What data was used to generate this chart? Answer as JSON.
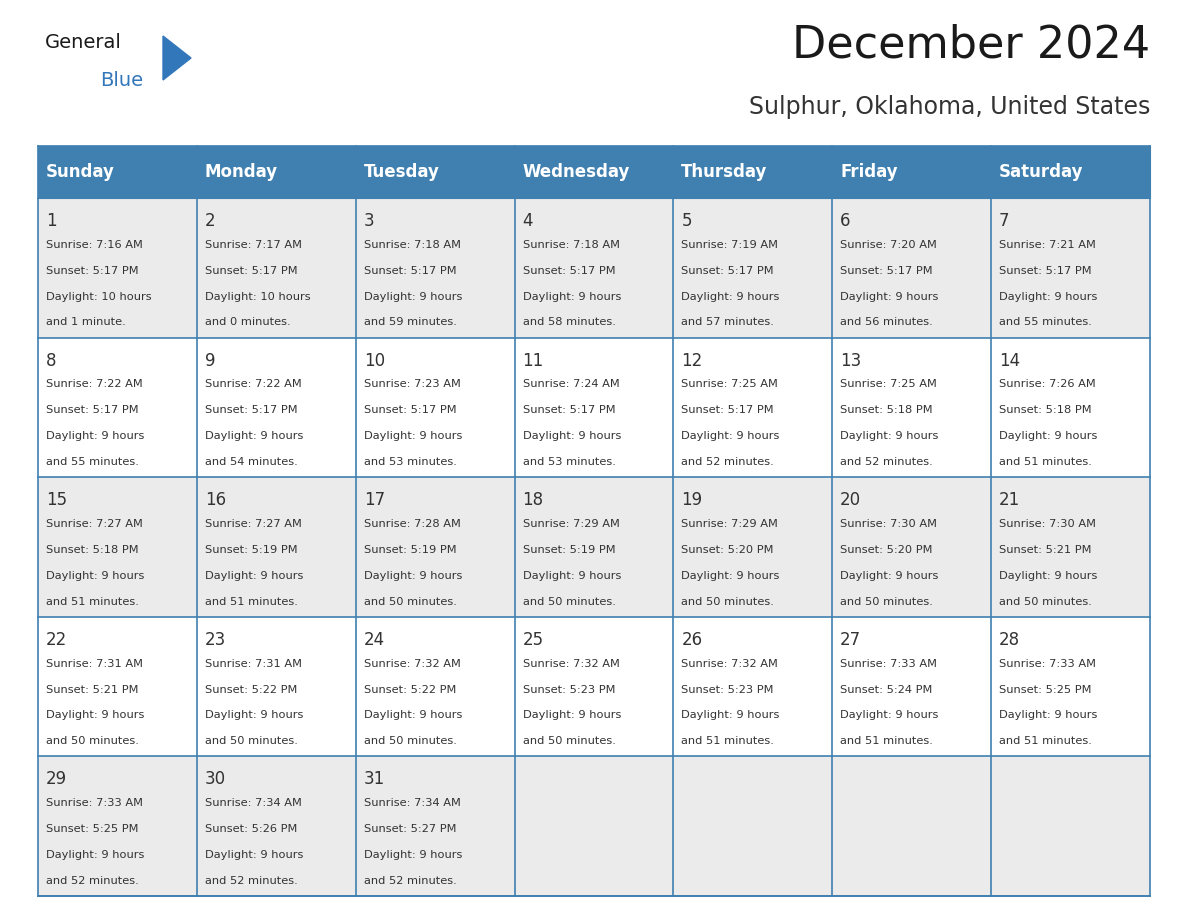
{
  "title": "December 2024",
  "subtitle": "Sulphur, Oklahoma, United States",
  "days_of_week": [
    "Sunday",
    "Monday",
    "Tuesday",
    "Wednesday",
    "Thursday",
    "Friday",
    "Saturday"
  ],
  "header_bg_color": "#4080B0",
  "header_text_color": "#FFFFFF",
  "cell_bg_color_light": "#EBEBEB",
  "cell_bg_color_dark": "#FFFFFF",
  "border_color": "#4080B0",
  "day_num_color": "#333333",
  "cell_text_color": "#333333",
  "title_color": "#1a1a1a",
  "subtitle_color": "#333333",
  "logo_general_color": "#1a1a1a",
  "logo_blue_color": "#3377BB",
  "weeks": [
    [
      {
        "day": 1,
        "sunrise": "7:16 AM",
        "sunset": "5:17 PM",
        "daylight_line1": "Daylight: 10 hours",
        "daylight_line2": "and 1 minute."
      },
      {
        "day": 2,
        "sunrise": "7:17 AM",
        "sunset": "5:17 PM",
        "daylight_line1": "Daylight: 10 hours",
        "daylight_line2": "and 0 minutes."
      },
      {
        "day": 3,
        "sunrise": "7:18 AM",
        "sunset": "5:17 PM",
        "daylight_line1": "Daylight: 9 hours",
        "daylight_line2": "and 59 minutes."
      },
      {
        "day": 4,
        "sunrise": "7:18 AM",
        "sunset": "5:17 PM",
        "daylight_line1": "Daylight: 9 hours",
        "daylight_line2": "and 58 minutes."
      },
      {
        "day": 5,
        "sunrise": "7:19 AM",
        "sunset": "5:17 PM",
        "daylight_line1": "Daylight: 9 hours",
        "daylight_line2": "and 57 minutes."
      },
      {
        "day": 6,
        "sunrise": "7:20 AM",
        "sunset": "5:17 PM",
        "daylight_line1": "Daylight: 9 hours",
        "daylight_line2": "and 56 minutes."
      },
      {
        "day": 7,
        "sunrise": "7:21 AM",
        "sunset": "5:17 PM",
        "daylight_line1": "Daylight: 9 hours",
        "daylight_line2": "and 55 minutes."
      }
    ],
    [
      {
        "day": 8,
        "sunrise": "7:22 AM",
        "sunset": "5:17 PM",
        "daylight_line1": "Daylight: 9 hours",
        "daylight_line2": "and 55 minutes."
      },
      {
        "day": 9,
        "sunrise": "7:22 AM",
        "sunset": "5:17 PM",
        "daylight_line1": "Daylight: 9 hours",
        "daylight_line2": "and 54 minutes."
      },
      {
        "day": 10,
        "sunrise": "7:23 AM",
        "sunset": "5:17 PM",
        "daylight_line1": "Daylight: 9 hours",
        "daylight_line2": "and 53 minutes."
      },
      {
        "day": 11,
        "sunrise": "7:24 AM",
        "sunset": "5:17 PM",
        "daylight_line1": "Daylight: 9 hours",
        "daylight_line2": "and 53 minutes."
      },
      {
        "day": 12,
        "sunrise": "7:25 AM",
        "sunset": "5:17 PM",
        "daylight_line1": "Daylight: 9 hours",
        "daylight_line2": "and 52 minutes."
      },
      {
        "day": 13,
        "sunrise": "7:25 AM",
        "sunset": "5:18 PM",
        "daylight_line1": "Daylight: 9 hours",
        "daylight_line2": "and 52 minutes."
      },
      {
        "day": 14,
        "sunrise": "7:26 AM",
        "sunset": "5:18 PM",
        "daylight_line1": "Daylight: 9 hours",
        "daylight_line2": "and 51 minutes."
      }
    ],
    [
      {
        "day": 15,
        "sunrise": "7:27 AM",
        "sunset": "5:18 PM",
        "daylight_line1": "Daylight: 9 hours",
        "daylight_line2": "and 51 minutes."
      },
      {
        "day": 16,
        "sunrise": "7:27 AM",
        "sunset": "5:19 PM",
        "daylight_line1": "Daylight: 9 hours",
        "daylight_line2": "and 51 minutes."
      },
      {
        "day": 17,
        "sunrise": "7:28 AM",
        "sunset": "5:19 PM",
        "daylight_line1": "Daylight: 9 hours",
        "daylight_line2": "and 50 minutes."
      },
      {
        "day": 18,
        "sunrise": "7:29 AM",
        "sunset": "5:19 PM",
        "daylight_line1": "Daylight: 9 hours",
        "daylight_line2": "and 50 minutes."
      },
      {
        "day": 19,
        "sunrise": "7:29 AM",
        "sunset": "5:20 PM",
        "daylight_line1": "Daylight: 9 hours",
        "daylight_line2": "and 50 minutes."
      },
      {
        "day": 20,
        "sunrise": "7:30 AM",
        "sunset": "5:20 PM",
        "daylight_line1": "Daylight: 9 hours",
        "daylight_line2": "and 50 minutes."
      },
      {
        "day": 21,
        "sunrise": "7:30 AM",
        "sunset": "5:21 PM",
        "daylight_line1": "Daylight: 9 hours",
        "daylight_line2": "and 50 minutes."
      }
    ],
    [
      {
        "day": 22,
        "sunrise": "7:31 AM",
        "sunset": "5:21 PM",
        "daylight_line1": "Daylight: 9 hours",
        "daylight_line2": "and 50 minutes."
      },
      {
        "day": 23,
        "sunrise": "7:31 AM",
        "sunset": "5:22 PM",
        "daylight_line1": "Daylight: 9 hours",
        "daylight_line2": "and 50 minutes."
      },
      {
        "day": 24,
        "sunrise": "7:32 AM",
        "sunset": "5:22 PM",
        "daylight_line1": "Daylight: 9 hours",
        "daylight_line2": "and 50 minutes."
      },
      {
        "day": 25,
        "sunrise": "7:32 AM",
        "sunset": "5:23 PM",
        "daylight_line1": "Daylight: 9 hours",
        "daylight_line2": "and 50 minutes."
      },
      {
        "day": 26,
        "sunrise": "7:32 AM",
        "sunset": "5:23 PM",
        "daylight_line1": "Daylight: 9 hours",
        "daylight_line2": "and 51 minutes."
      },
      {
        "day": 27,
        "sunrise": "7:33 AM",
        "sunset": "5:24 PM",
        "daylight_line1": "Daylight: 9 hours",
        "daylight_line2": "and 51 minutes."
      },
      {
        "day": 28,
        "sunrise": "7:33 AM",
        "sunset": "5:25 PM",
        "daylight_line1": "Daylight: 9 hours",
        "daylight_line2": "and 51 minutes."
      }
    ],
    [
      {
        "day": 29,
        "sunrise": "7:33 AM",
        "sunset": "5:25 PM",
        "daylight_line1": "Daylight: 9 hours",
        "daylight_line2": "and 52 minutes."
      },
      {
        "day": 30,
        "sunrise": "7:34 AM",
        "sunset": "5:26 PM",
        "daylight_line1": "Daylight: 9 hours",
        "daylight_line2": "and 52 minutes."
      },
      {
        "day": 31,
        "sunrise": "7:34 AM",
        "sunset": "5:27 PM",
        "daylight_line1": "Daylight: 9 hours",
        "daylight_line2": "and 52 minutes."
      },
      null,
      null,
      null,
      null
    ]
  ]
}
